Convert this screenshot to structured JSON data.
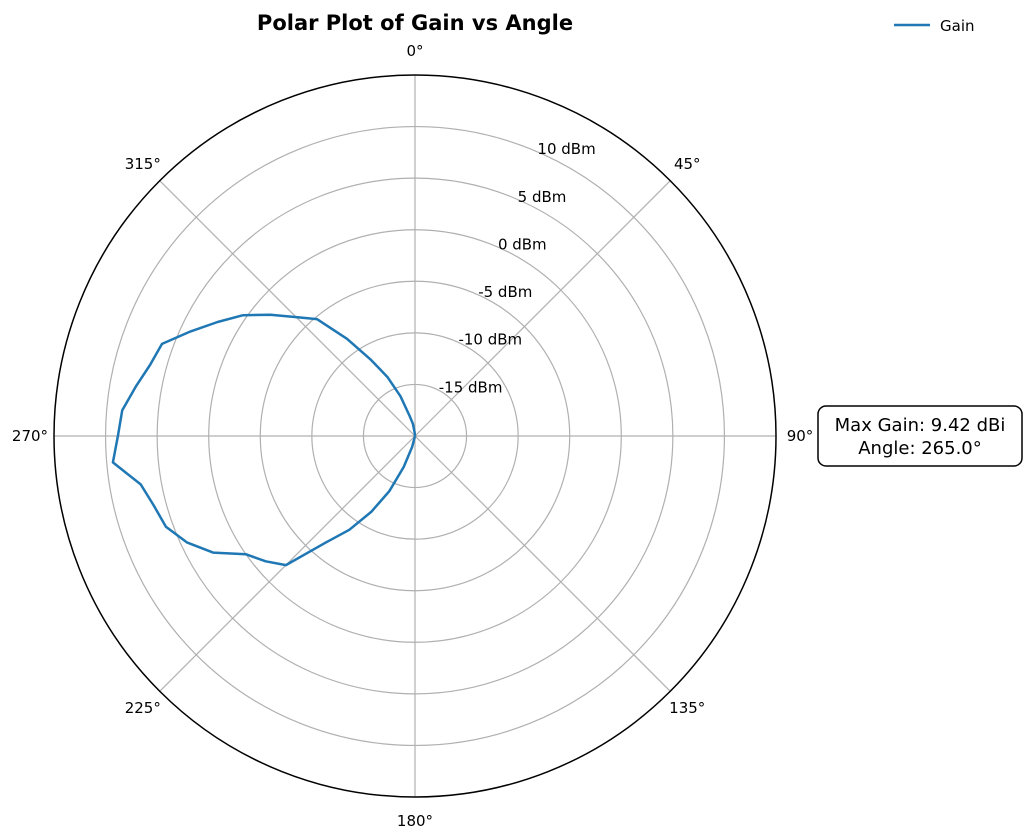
{
  "chart_data": {
    "type": "line",
    "projection": "polar",
    "title": "Polar Plot of Gain vs Angle",
    "theta_zero": "N",
    "theta_direction": "clockwise",
    "theta_ticks": [
      "0°",
      "45°",
      "90°",
      "135°",
      "180°",
      "225°",
      "270°",
      "315°"
    ],
    "r_ticks": [
      "-15 dBm",
      "-10 dBm",
      "-5 dBm",
      "0 dBm",
      "5 dBm",
      "10 dBm"
    ],
    "r_tick_values": [
      -15,
      -10,
      -5,
      0,
      5,
      10
    ],
    "rlim": [
      -20,
      15
    ],
    "grid": true,
    "legend": {
      "placement": "top-right",
      "entries": [
        "Gain"
      ]
    },
    "series": [
      {
        "name": "Gain",
        "color": "#1f77b4",
        "theta": [
          0,
          5,
          10,
          15,
          20,
          25,
          30,
          35,
          40,
          45,
          50,
          55,
          60,
          65,
          70,
          75,
          80,
          85,
          90,
          95,
          100,
          105,
          110,
          115,
          120,
          125,
          130,
          135,
          140,
          145,
          150,
          155,
          160,
          165,
          170,
          175,
          180,
          185,
          190,
          195,
          200,
          205,
          210,
          215,
          220,
          225,
          230,
          235,
          240,
          245,
          250,
          255,
          260,
          265,
          270,
          275,
          280,
          285,
          290,
          295,
          300,
          305,
          310,
          315,
          320,
          325,
          330,
          335,
          340,
          345,
          350,
          355,
          360
        ],
        "values": [
          -20,
          -20,
          -20,
          -20,
          -20,
          -20,
          -20,
          -20,
          -20,
          -20,
          -20,
          -20,
          -20,
          -20,
          -20,
          -20,
          -20,
          -20,
          -20,
          -20,
          -20,
          -20,
          -20,
          -20,
          -20,
          -20,
          -20,
          -20,
          -20,
          -20,
          -20,
          -20,
          -20,
          -20,
          -20,
          -20,
          -20,
          -20,
          -20,
          -18.9,
          -16.8,
          -14.1,
          -11.5,
          -8.9,
          -6.5,
          -2.3,
          -1.1,
          0.0,
          2.6,
          4.4,
          5.7,
          6.2,
          7.0,
          9.4,
          8.8,
          8.5,
          7.5,
          6.6,
          6.1,
          4.0,
          2.1,
          0.4,
          -1.7,
          -3.7,
          -5.2,
          -8.5,
          -11.5,
          -13.7,
          -15.9,
          -18.0,
          -18.8,
          -19.7,
          -20
        ]
      }
    ],
    "annotation": {
      "lines": [
        "Max Gain: 9.42 dBi",
        "Angle: 265.0°"
      ],
      "placement": "right"
    }
  }
}
